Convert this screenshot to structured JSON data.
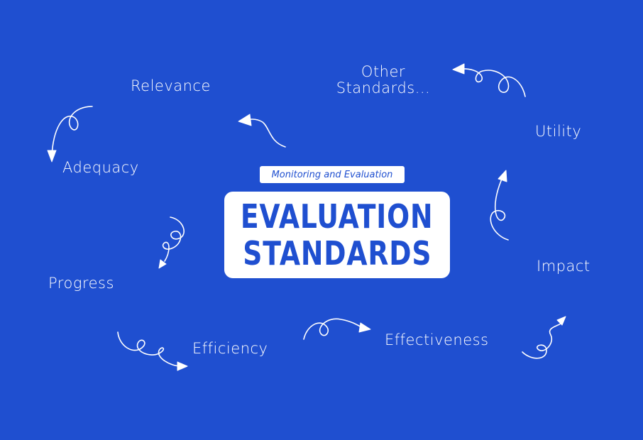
{
  "subtitle": "Monitoring and Evaluation",
  "title": {
    "line1": "EVALUATION",
    "line2": "STANDARDS"
  },
  "standards": {
    "relevance": "Relevance",
    "other": {
      "line1": "Other",
      "line2": "Standards..."
    },
    "utility": "Utility",
    "adequacy": "Adequacy",
    "progress": "Progress",
    "impact": "Impact",
    "efficiency": "Efficiency",
    "effectiveness": "Effectiveness"
  },
  "colors": {
    "background": "#1f4fd0",
    "text": "#ffffff"
  }
}
